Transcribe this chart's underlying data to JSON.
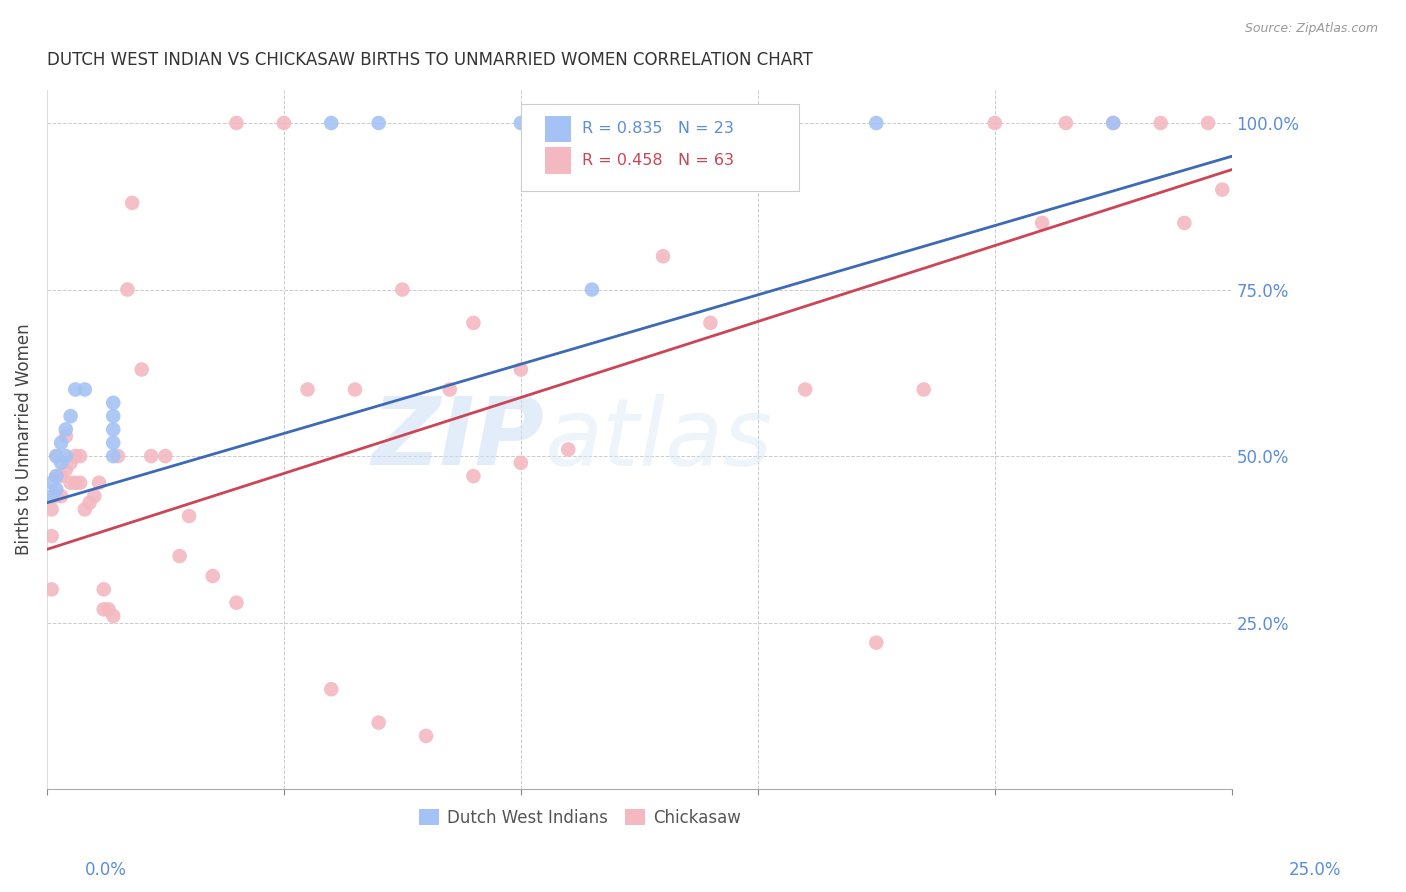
{
  "title": "DUTCH WEST INDIAN VS CHICKASAW BIRTHS TO UNMARRIED WOMEN CORRELATION CHART",
  "source": "Source: ZipAtlas.com",
  "ylabel": "Births to Unmarried Women",
  "watermark_zip": "ZIP",
  "watermark_atlas": "atlas",
  "legend_blue_r": "R = 0.835",
  "legend_blue_n": "N = 23",
  "legend_pink_r": "R = 0.458",
  "legend_pink_n": "N = 63",
  "blue_color": "#a4c2f4",
  "pink_color": "#f4b8c1",
  "blue_line_color": "#3d6ab5",
  "pink_line_color": "#cc4455",
  "xlim": [
    0.0,
    0.25
  ],
  "ylim": [
    0.0,
    1.05
  ],
  "dutch_x": [
    0.001,
    0.001,
    0.002,
    0.002,
    0.002,
    0.003,
    0.003,
    0.004,
    0.004,
    0.005,
    0.006,
    0.008,
    0.014,
    0.014,
    0.014,
    0.014,
    0.014,
    0.06,
    0.07,
    0.1,
    0.115,
    0.175,
    0.225
  ],
  "dutch_y": [
    0.44,
    0.46,
    0.45,
    0.47,
    0.5,
    0.49,
    0.52,
    0.5,
    0.54,
    0.56,
    0.6,
    0.6,
    0.5,
    0.52,
    0.54,
    0.56,
    0.58,
    1.0,
    1.0,
    1.0,
    0.75,
    1.0,
    1.0
  ],
  "chickasaw_x": [
    0.001,
    0.001,
    0.001,
    0.002,
    0.002,
    0.002,
    0.003,
    0.003,
    0.004,
    0.004,
    0.005,
    0.005,
    0.006,
    0.006,
    0.007,
    0.007,
    0.008,
    0.009,
    0.01,
    0.011,
    0.012,
    0.012,
    0.013,
    0.014,
    0.015,
    0.017,
    0.018,
    0.02,
    0.022,
    0.025,
    0.028,
    0.03,
    0.035,
    0.04,
    0.05,
    0.055,
    0.065,
    0.075,
    0.085,
    0.09,
    0.1,
    0.11,
    0.12,
    0.13,
    0.14,
    0.16,
    0.175,
    0.185,
    0.2,
    0.21,
    0.215,
    0.225,
    0.235,
    0.24,
    0.245,
    0.248,
    0.04,
    0.06,
    0.07,
    0.08,
    0.09,
    0.1,
    0.11
  ],
  "chickasaw_y": [
    0.3,
    0.38,
    0.42,
    0.44,
    0.47,
    0.5,
    0.44,
    0.47,
    0.48,
    0.53,
    0.46,
    0.49,
    0.46,
    0.5,
    0.46,
    0.5,
    0.42,
    0.43,
    0.44,
    0.46,
    0.27,
    0.3,
    0.27,
    0.26,
    0.5,
    0.75,
    0.88,
    0.63,
    0.5,
    0.5,
    0.35,
    0.41,
    0.32,
    1.0,
    1.0,
    0.6,
    0.6,
    0.75,
    0.6,
    0.7,
    0.63,
    1.0,
    1.0,
    0.8,
    0.7,
    0.6,
    0.22,
    0.6,
    1.0,
    0.85,
    1.0,
    1.0,
    1.0,
    0.85,
    1.0,
    0.9,
    0.28,
    0.15,
    0.1,
    0.08,
    0.47,
    0.49,
    0.51
  ],
  "blue_r_line_x0": 0.0,
  "blue_r_line_y0": 0.43,
  "blue_r_line_x1": 0.25,
  "blue_r_line_y1": 0.95,
  "pink_r_line_x0": 0.0,
  "pink_r_line_y0": 0.36,
  "pink_r_line_x1": 0.25,
  "pink_r_line_y1": 0.93
}
